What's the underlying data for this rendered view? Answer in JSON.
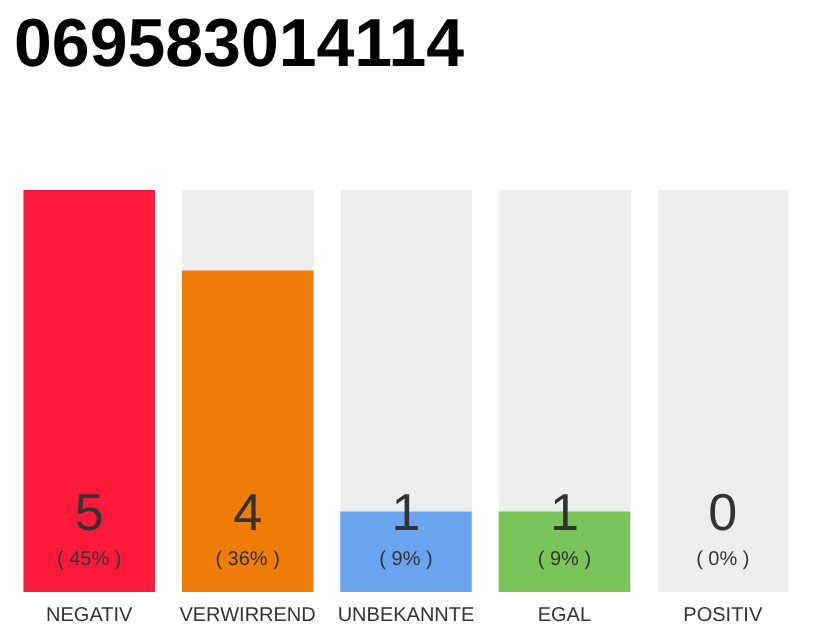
{
  "chart_data": {
    "type": "bar",
    "title": "069583014114",
    "categories": [
      "NEGATIV",
      "VERWIRREND",
      "UNBEKANNTE",
      "EGAL",
      "POSITIV"
    ],
    "values": [
      5,
      4,
      1,
      1,
      0
    ],
    "colors": [
      "#ff1a3c",
      "#f07d0a",
      "#6aa3ee",
      "#7ac45a",
      "#cccccc"
    ],
    "data_labels": true,
    "annotations": [
      "( 45% )",
      "( 36% )",
      "( 9% )",
      "( 9% )",
      "( 0% )"
    ]
  }
}
